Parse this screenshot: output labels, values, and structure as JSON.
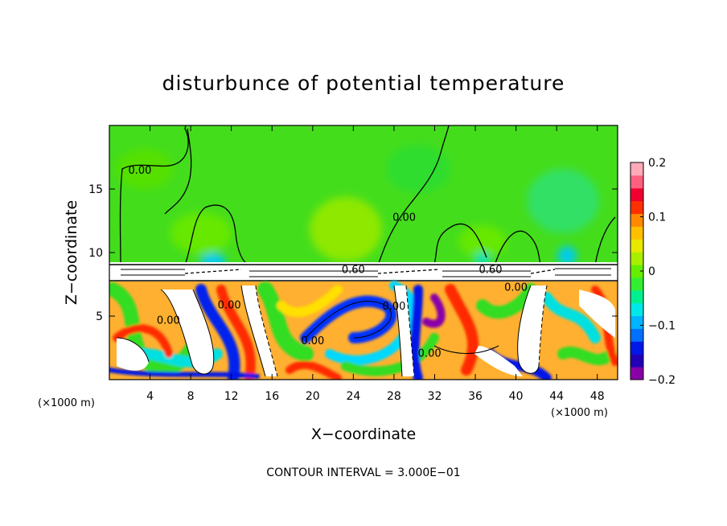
{
  "chart_data": {
    "type": "heatmap",
    "title": "disturbunce of potential temperature",
    "xlabel": "X−coordinate",
    "ylabel": "Z−coordinate",
    "x_unit_left": "(×1000 m)",
    "x_unit_right": "(×1000 m)",
    "xlim": [
      0,
      50
    ],
    "ylim": [
      0,
      20
    ],
    "x_ticks": [
      4,
      8,
      12,
      16,
      20,
      24,
      28,
      32,
      36,
      40,
      44,
      48
    ],
    "x_tick_labels": [
      "4",
      "8",
      "12",
      "16",
      "20",
      "24",
      "28",
      "32",
      "36",
      "40",
      "44",
      "48"
    ],
    "y_ticks": [
      5,
      10,
      15
    ],
    "y_tick_labels": [
      "5",
      "10",
      "15"
    ],
    "colorbar": {
      "range": [
        -0.2,
        0.2
      ],
      "ticks": [
        0.2,
        0.1,
        0,
        -0.1,
        -0.2
      ],
      "tick_labels": [
        "0.2",
        "0.1",
        "0",
        "−0.1",
        "−0.2"
      ],
      "colors": [
        "#8a00a8",
        "#2200b8",
        "#0018e8",
        "#0070ff",
        "#00b4ff",
        "#00e8e8",
        "#00f090",
        "#33ee33",
        "#66ee00",
        "#aaee00",
        "#e8e800",
        "#ffc000",
        "#ff8a00",
        "#ff3000",
        "#f00030",
        "#ff6080",
        "#ffaab8"
      ]
    },
    "contour_labels": [
      {
        "text": "0.00",
        "x": 3.0,
        "y": 16.2
      },
      {
        "text": "0.00",
        "x": 29.0,
        "y": 12.5
      },
      {
        "text": "0.60",
        "x": 24.0,
        "y": 8.4
      },
      {
        "text": "0.60",
        "x": 37.5,
        "y": 8.4
      },
      {
        "text": "0.00",
        "x": 11.8,
        "y": 5.6
      },
      {
        "text": "0.00",
        "x": 5.8,
        "y": 4.4
      },
      {
        "text": "0.00",
        "x": 28.0,
        "y": 5.5
      },
      {
        "text": "0.00",
        "x": 20.0,
        "y": 2.8
      },
      {
        "text": "0.00",
        "x": 31.5,
        "y": 1.8
      },
      {
        "text": "0.00",
        "x": 40.0,
        "y": 7.0
      }
    ],
    "contour_interval_text": "CONTOUR INTERVAL = 3.000E−01"
  }
}
